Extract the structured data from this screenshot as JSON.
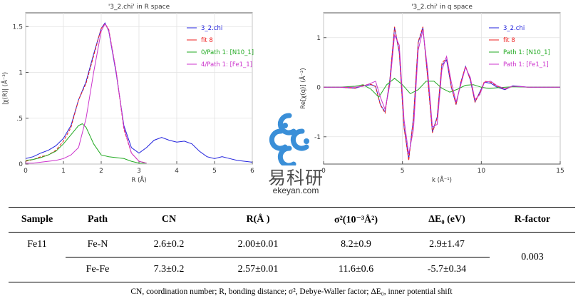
{
  "chart_data": [
    {
      "type": "line",
      "title": "'3_2.chi' in R space",
      "xlabel": "R (Å)",
      "ylabel": "|χ(R)| (Å⁻³)",
      "xlim": [
        0,
        6
      ],
      "ylim": [
        0,
        1.65
      ],
      "xticks": [
        0,
        1,
        2,
        3,
        4,
        5,
        6
      ],
      "yticks": [
        0,
        0.5,
        1,
        1.5
      ],
      "ytick_labels": [
        "0",
        ".5",
        "1",
        "1.5"
      ],
      "grid": true,
      "legend_position": "top-right",
      "series": [
        {
          "name": "3_2.chi",
          "color": "#2222dd",
          "x": [
            0,
            0.2,
            0.4,
            0.6,
            0.8,
            1.0,
            1.2,
            1.4,
            1.6,
            1.8,
            2.0,
            2.1,
            2.2,
            2.4,
            2.6,
            2.8,
            3.0,
            3.2,
            3.4,
            3.6,
            3.8,
            4.0,
            4.2,
            4.4,
            4.6,
            4.8,
            5.0,
            5.2,
            5.4,
            5.6,
            5.8,
            6.0
          ],
          "y": [
            0.06,
            0.08,
            0.12,
            0.15,
            0.2,
            0.28,
            0.42,
            0.7,
            0.9,
            1.2,
            1.48,
            1.54,
            1.45,
            0.98,
            0.42,
            0.18,
            0.12,
            0.18,
            0.26,
            0.29,
            0.26,
            0.24,
            0.25,
            0.22,
            0.14,
            0.08,
            0.06,
            0.08,
            0.06,
            0.04,
            0.03,
            0.02
          ]
        },
        {
          "name": "fit 8",
          "color": "#ee2222",
          "x": [
            0,
            0.2,
            0.4,
            0.6,
            0.8,
            1.0,
            1.2,
            1.4,
            1.6,
            1.8,
            2.0,
            2.1,
            2.2,
            2.4,
            2.6,
            2.8,
            3.0,
            3.2
          ],
          "y": [
            0.03,
            0.05,
            0.08,
            0.1,
            0.15,
            0.25,
            0.4,
            0.7,
            0.88,
            1.18,
            1.48,
            1.53,
            1.47,
            1.0,
            0.38,
            0.12,
            0.03,
            0.01
          ]
        },
        {
          "name": "0/Path 1: [N10_1]",
          "color": "#22aa22",
          "x": [
            0,
            0.2,
            0.4,
            0.6,
            0.8,
            1.0,
            1.2,
            1.4,
            1.5,
            1.6,
            1.8,
            2.0,
            2.2,
            2.4,
            2.6,
            2.8,
            3.0,
            3.2
          ],
          "y": [
            0.04,
            0.05,
            0.07,
            0.1,
            0.14,
            0.22,
            0.32,
            0.42,
            0.44,
            0.4,
            0.22,
            0.1,
            0.08,
            0.07,
            0.06,
            0.03,
            0.01,
            0.01
          ]
        },
        {
          "name": "4/Path 1: [Fe1_1]",
          "color": "#cc33cc",
          "x": [
            0,
            0.2,
            0.4,
            0.6,
            0.8,
            1.0,
            1.2,
            1.4,
            1.6,
            1.8,
            2.0,
            2.1,
            2.2,
            2.4,
            2.6,
            2.8,
            3.0,
            3.2
          ],
          "y": [
            0.01,
            0.01,
            0.02,
            0.03,
            0.04,
            0.06,
            0.1,
            0.18,
            0.5,
            1.0,
            1.45,
            1.53,
            1.46,
            1.0,
            0.4,
            0.12,
            0.03,
            0.01
          ]
        }
      ]
    },
    {
      "type": "line",
      "title": "'3_2.chi' in q space",
      "xlabel": "k (Å⁻¹)",
      "ylabel": "Re[χ(q)] (Å⁻²)",
      "xlim": [
        0,
        15
      ],
      "ylim": [
        -1.55,
        1.5
      ],
      "xticks": [
        0,
        5,
        10,
        15
      ],
      "yticks": [
        -1,
        0,
        1
      ],
      "ytick_labels": [
        "-1",
        "0",
        "1"
      ],
      "grid": true,
      "legend_position": "top-right",
      "series": [
        {
          "name": "3_2.chi",
          "color": "#2222dd",
          "x": [
            0,
            1,
            2,
            2.5,
            3,
            3.3,
            3.6,
            3.9,
            4.2,
            4.5,
            4.8,
            5.1,
            5.4,
            5.7,
            6.0,
            6.3,
            6.6,
            6.9,
            7.2,
            7.5,
            7.8,
            8.1,
            8.4,
            8.7,
            9.0,
            9.3,
            9.6,
            9.9,
            10.2,
            10.6,
            11,
            11.5,
            12,
            13,
            14,
            15
          ],
          "y": [
            0,
            0,
            -0.02,
            0.03,
            0.05,
            0.02,
            -0.35,
            -0.5,
            0.15,
            1.2,
            0.7,
            -0.8,
            -1.45,
            -0.6,
            0.9,
            1.2,
            0.2,
            -0.9,
            -0.6,
            0.45,
            0.55,
            0,
            -0.35,
            0.1,
            0.42,
            0.15,
            -0.3,
            -0.1,
            0.1,
            0.08,
            0,
            -0.05,
            0.03,
            0,
            0,
            0
          ]
        },
        {
          "name": "fit 8",
          "color": "#ee2222",
          "x": [
            0,
            1,
            2,
            2.5,
            3,
            3.3,
            3.6,
            3.9,
            4.2,
            4.5,
            4.8,
            5.1,
            5.4,
            5.7,
            6.0,
            6.3,
            6.6,
            6.9,
            7.2,
            7.5,
            7.8,
            8.1,
            8.4,
            8.7,
            9.0,
            9.3,
            9.6,
            9.9,
            10.2,
            10.6,
            11,
            11.5,
            12,
            13,
            14,
            15
          ],
          "y": [
            0,
            0,
            -0.02,
            0.04,
            0.06,
            0.01,
            -0.36,
            -0.52,
            0.14,
            1.22,
            0.72,
            -0.82,
            -1.48,
            -0.62,
            0.92,
            1.22,
            0.18,
            -0.92,
            -0.62,
            0.48,
            0.6,
            0,
            -0.35,
            0.1,
            0.42,
            0.16,
            -0.3,
            -0.12,
            0.12,
            0.1,
            0.02,
            -0.04,
            0.02,
            0,
            0,
            0
          ]
        },
        {
          "name": "Path 1: [N10_1]",
          "color": "#22aa22",
          "x": [
            0,
            1,
            2,
            2.5,
            3,
            3.5,
            4,
            4.5,
            5,
            5.5,
            6,
            6.5,
            7,
            7.5,
            8,
            8.5,
            9,
            9.5,
            10,
            10.5,
            11,
            12,
            13,
            14,
            15
          ],
          "y": [
            0,
            0,
            0.02,
            0.05,
            -0.04,
            -0.2,
            0.05,
            0.18,
            0.05,
            -0.13,
            -0.05,
            0.12,
            0.12,
            -0.02,
            -0.1,
            -0.04,
            0.04,
            0.05,
            0,
            -0.03,
            -0.01,
            0.01,
            0,
            0,
            0
          ]
        },
        {
          "name": "Path 1: [Fe1_1]",
          "color": "#cc33cc",
          "x": [
            0,
            1,
            2,
            2.5,
            3,
            3.3,
            3.6,
            3.9,
            4.2,
            4.5,
            4.8,
            5.1,
            5.4,
            5.7,
            6.0,
            6.3,
            6.6,
            6.9,
            7.2,
            7.5,
            7.8,
            8.1,
            8.4,
            8.7,
            9.0,
            9.3,
            9.6,
            9.9,
            10.2,
            10.6,
            11,
            11.5,
            12,
            13,
            14,
            15
          ],
          "y": [
            0,
            0,
            0,
            0.02,
            0.08,
            0.12,
            -0.2,
            -0.45,
            0.05,
            1.05,
            0.85,
            -0.65,
            -1.35,
            -0.85,
            0.75,
            1.15,
            0.35,
            -0.8,
            -0.75,
            0.35,
            0.62,
            0.1,
            -0.3,
            0.05,
            0.4,
            0.2,
            -0.25,
            -0.15,
            0.1,
            0.12,
            0.03,
            -0.03,
            0.02,
            0,
            0,
            0
          ]
        }
      ]
    }
  ],
  "watermark": {
    "cn": "易科研",
    "en": "ekeyan.com",
    "color": "#3a8fd8"
  },
  "table": {
    "headers": [
      "Sample",
      "Path",
      "CN",
      "R(Å )",
      "σ²(10⁻³Å²)",
      "ΔE₀ (eV)",
      "R-factor"
    ],
    "rows": [
      [
        "Fe11",
        "Fe-N",
        "2.6±0.2",
        "2.00±0.01",
        "8.2±0.9",
        "2.9±1.47",
        "0.003"
      ],
      [
        "",
        "Fe-Fe",
        "7.3±0.2",
        "2.57±0.01",
        "11.6±0.6",
        "-5.7±0.34",
        ""
      ]
    ]
  },
  "footnote": "CN, coordination number;  R, bonding  distance;  σ², Debye-Waller factor;  ΔE₀, inner potential shift"
}
